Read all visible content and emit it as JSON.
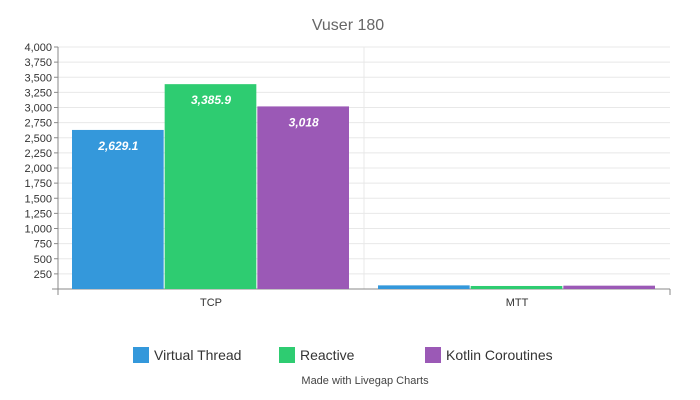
{
  "chart_data": {
    "type": "bar",
    "title": "Vuser 180",
    "categories": [
      "TCP",
      "MTT"
    ],
    "series": [
      {
        "name": "Virtual Thread",
        "color": "#3498db",
        "values": [
          2629.1,
          60
        ],
        "labels": [
          "2,629.1",
          null
        ]
      },
      {
        "name": "Reactive",
        "color": "#2ecc71",
        "values": [
          3385.9,
          50
        ],
        "labels": [
          "3,385.9",
          null
        ]
      },
      {
        "name": "Kotlin Coroutines",
        "color": "#9b59b6",
        "values": [
          3018,
          55
        ],
        "labels": [
          "3,018",
          null
        ]
      }
    ],
    "ylim": [
      0,
      4000
    ],
    "yticks": [
      250,
      500,
      750,
      1000,
      1250,
      1500,
      1750,
      2000,
      2250,
      2500,
      2750,
      3000,
      3250,
      3500,
      3750,
      4000
    ],
    "ytick_labels": [
      "250",
      "500",
      "750",
      "1,000",
      "1,250",
      "1,500",
      "1,750",
      "2,000",
      "2,250",
      "2,500",
      "2,750",
      "3,000",
      "3,250",
      "3,500",
      "3,750",
      "4,000"
    ],
    "xlabel": "",
    "ylabel": "",
    "grid": true,
    "legend_position": "bottom"
  },
  "credit": "Made with Livegap Charts"
}
